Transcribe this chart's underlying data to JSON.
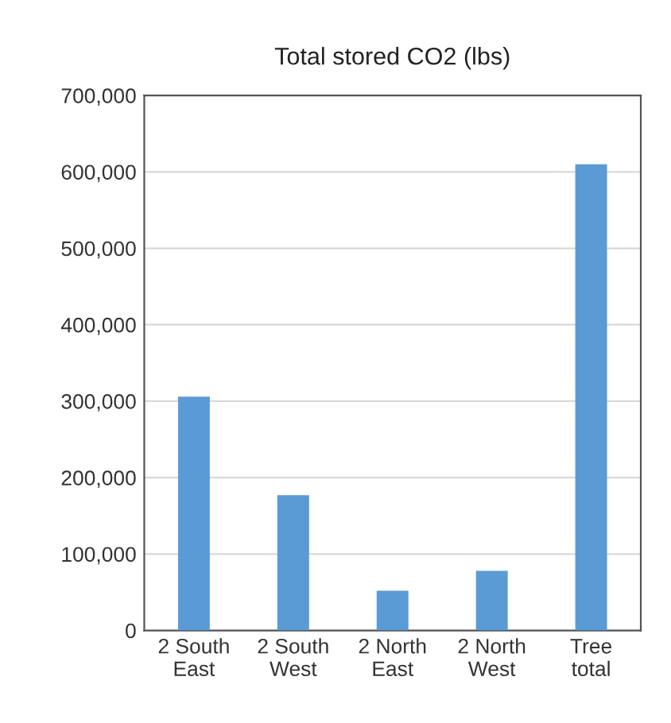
{
  "chart_data": {
    "type": "bar",
    "title": "Total stored CO2 (lbs)",
    "categories": [
      "2 South\nEast",
      "2 South\nWest",
      "2 North\nEast",
      "2 North\nWest",
      "Tree\ntotal"
    ],
    "values": [
      306000,
      177000,
      52000,
      78000,
      610000
    ],
    "color": "#5b9bd5",
    "ylim": [
      0,
      700000
    ],
    "yticks": [
      {
        "value": 0,
        "label": "0"
      },
      {
        "value": 100000,
        "label": "100,000"
      },
      {
        "value": 200000,
        "label": "200,000"
      },
      {
        "value": 300000,
        "label": "300,000"
      },
      {
        "value": 400000,
        "label": "400,000"
      },
      {
        "value": 500000,
        "label": "500,000"
      },
      {
        "value": 600000,
        "label": "600,000"
      },
      {
        "value": 700000,
        "label": "700,000"
      }
    ],
    "grid": "y",
    "legend": false
  }
}
